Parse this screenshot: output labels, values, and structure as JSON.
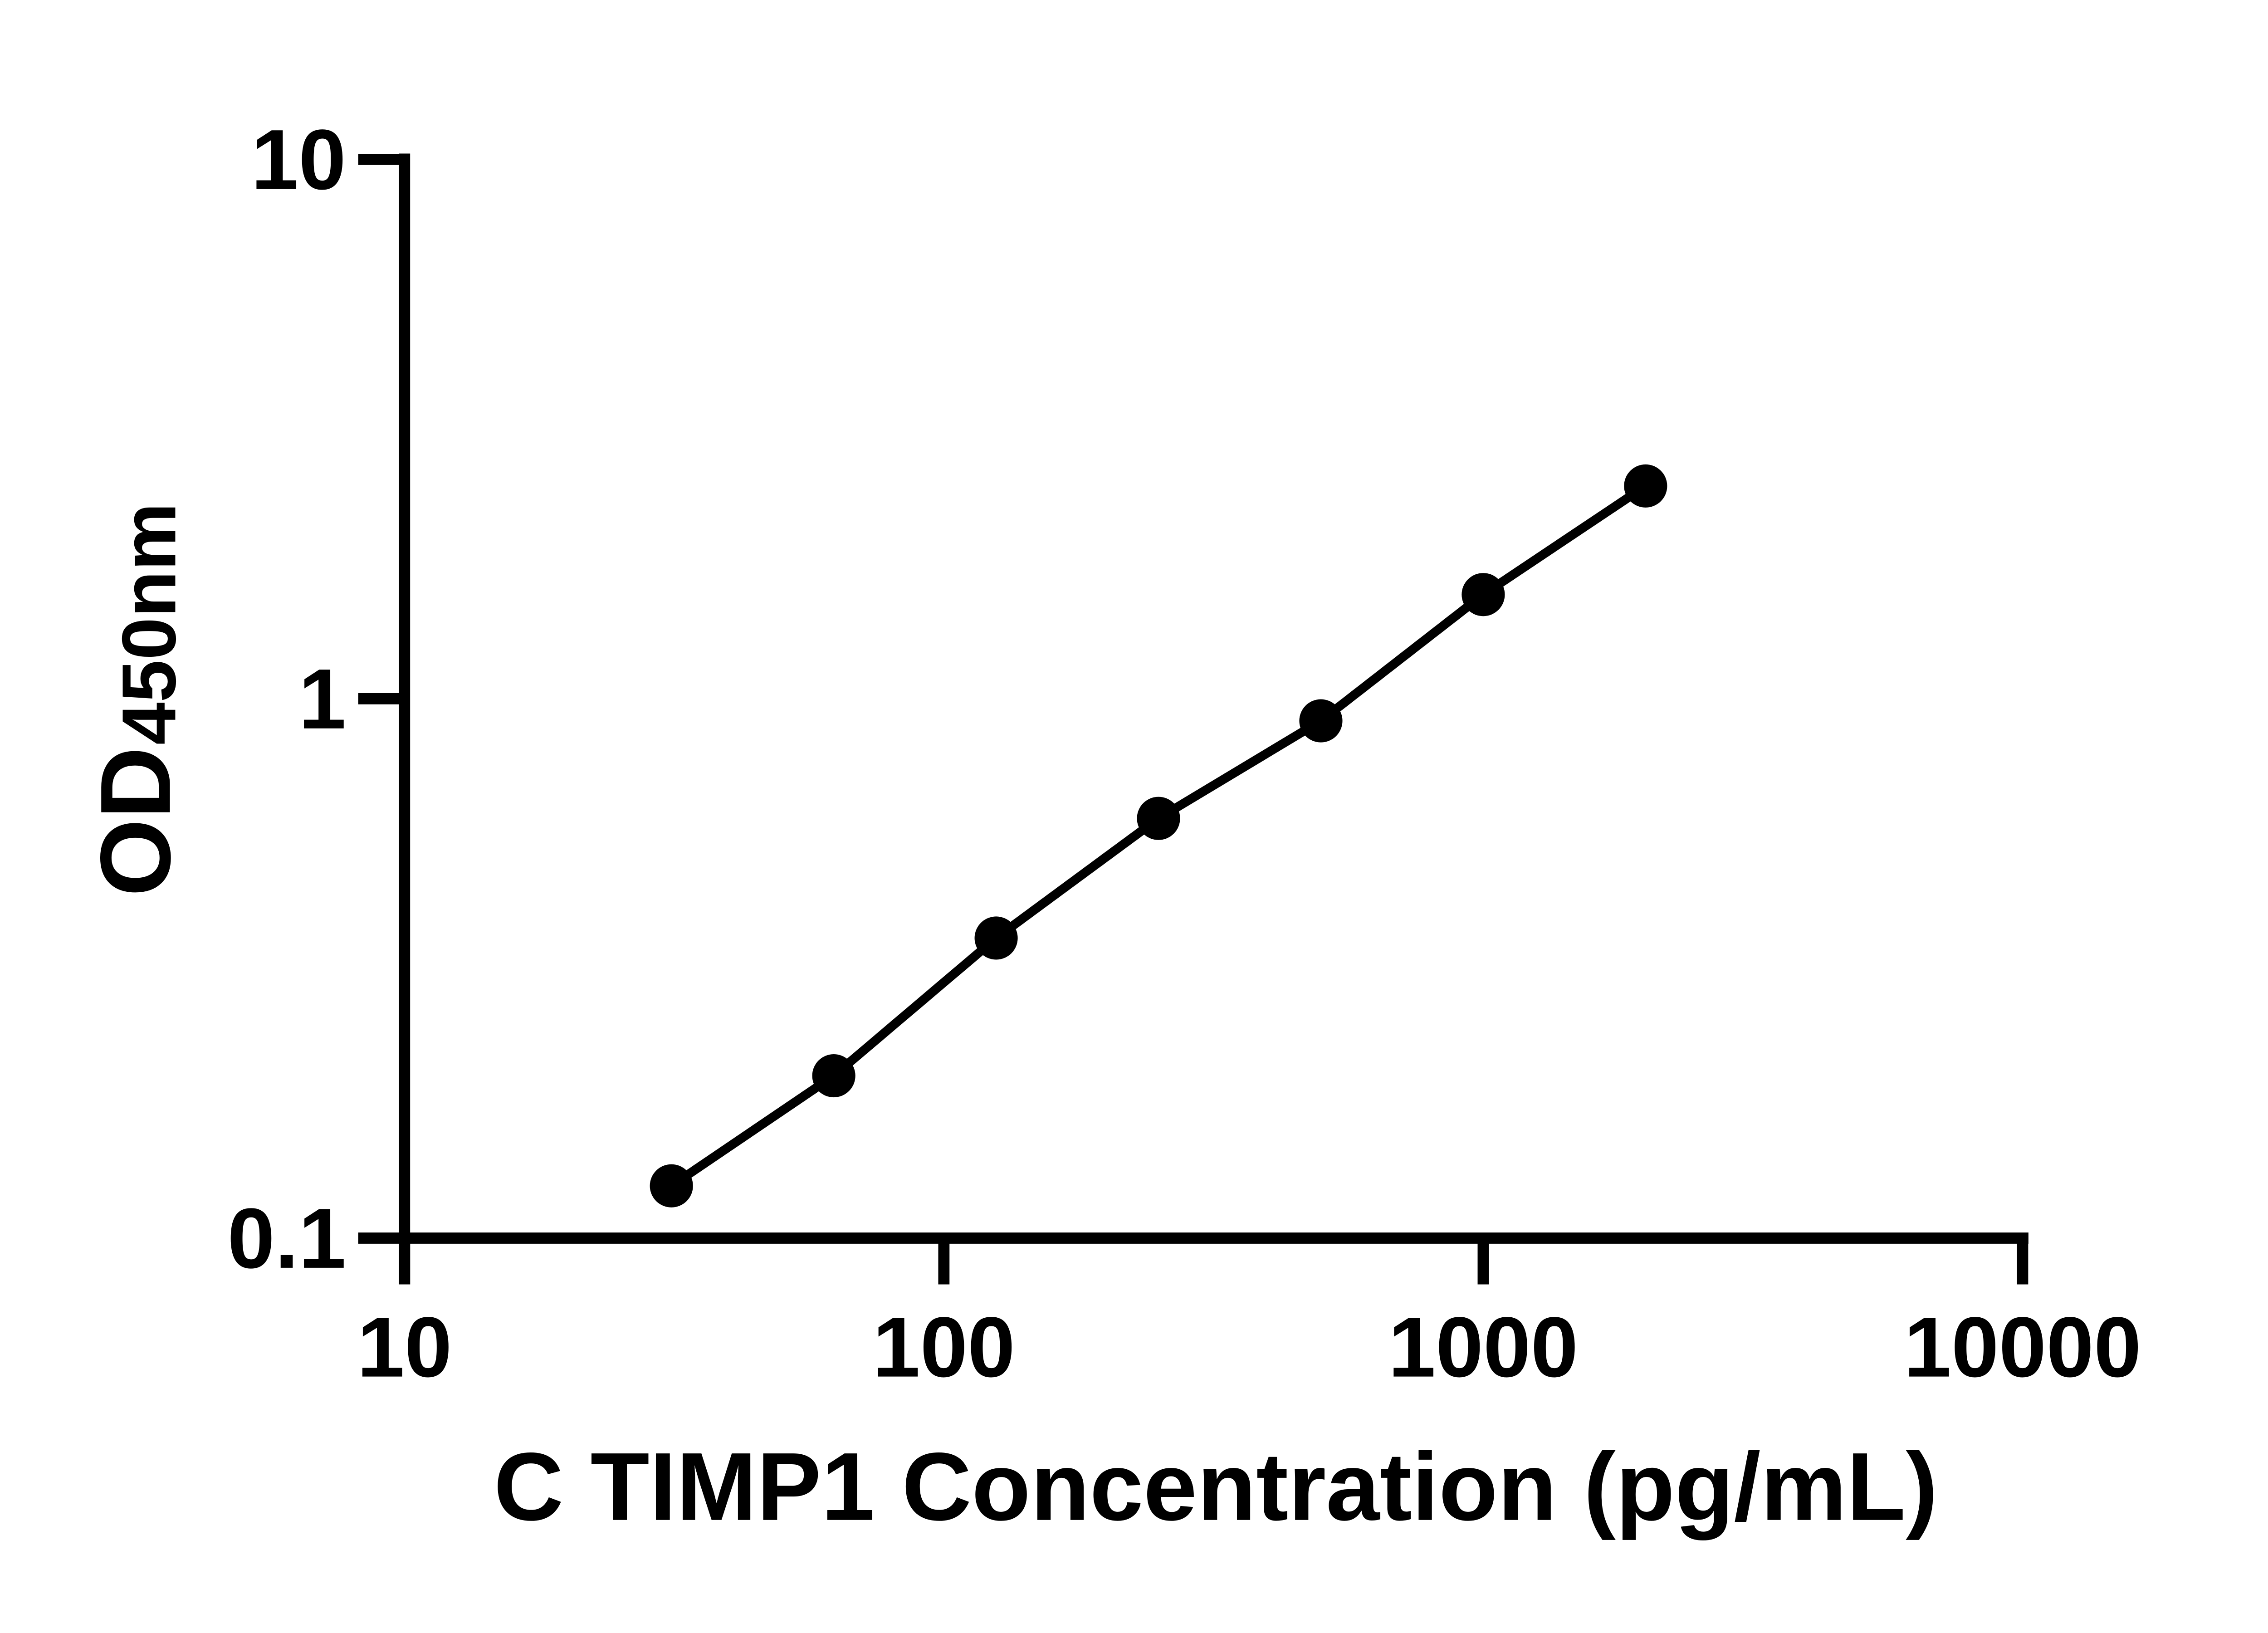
{
  "chart_data": {
    "type": "scatter",
    "xlabel": "C TIMP1 Concentration (pg/mL)",
    "ylabel_main": "OD",
    "ylabel_sub": "450nm",
    "x_scale": "log",
    "y_scale": "log",
    "xlim": [
      10,
      10000
    ],
    "ylim": [
      0.1,
      10
    ],
    "grid": false,
    "legend_position": "none",
    "x": [
      31.25,
      62.5,
      125,
      250,
      500,
      1000,
      2000
    ],
    "values": [
      0.125,
      0.2,
      0.36,
      0.6,
      0.91,
      1.56,
      2.48
    ],
    "x_ticks": [
      {
        "value": 10,
        "label": "10"
      },
      {
        "value": 100,
        "label": "100"
      },
      {
        "value": 1000,
        "label": "1000"
      },
      {
        "value": 10000,
        "label": "10000"
      }
    ],
    "y_ticks": [
      {
        "value": 10,
        "label": "10"
      },
      {
        "value": 1,
        "label": "1"
      },
      {
        "value": 0.1,
        "label": "0.1"
      }
    ],
    "line_color": "#000000",
    "marker_color": "#000000",
    "axis_color": "#000000",
    "background": "#ffffff"
  }
}
